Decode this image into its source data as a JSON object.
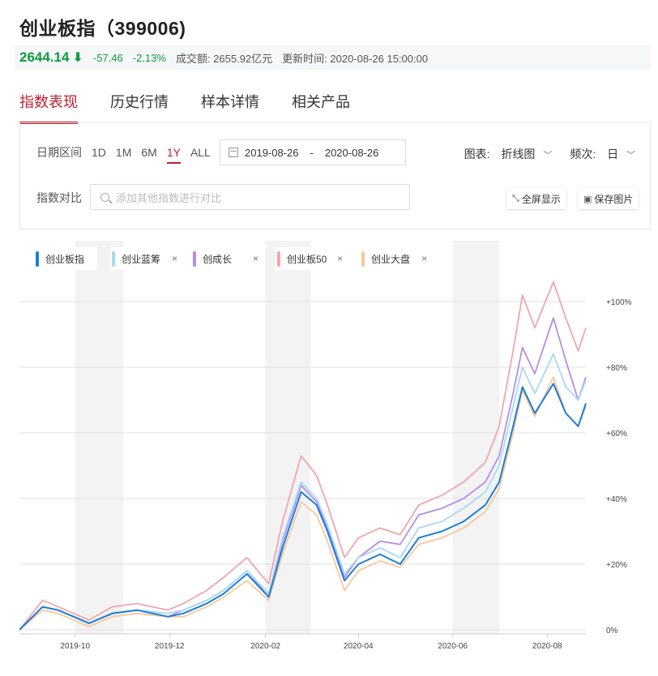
{
  "header": {
    "title": "创业板指（399006)",
    "price": "2644.14",
    "change": "-57.46",
    "change_pct": "-2.13%",
    "turnover": "成交额: 2655.92亿元",
    "update_time": "更新时间: 2020-08-26 15:00:00",
    "down_color": "#0e9b3a",
    "accent": "#c0202e"
  },
  "tabs": [
    {
      "label": "指数表现",
      "active": true
    },
    {
      "label": "历史行情",
      "active": false
    },
    {
      "label": "样本详情",
      "active": false
    },
    {
      "label": "相关产品",
      "active": false
    }
  ],
  "controls": {
    "date_range_label": "日期区间",
    "ranges": [
      "1D",
      "1M",
      "6M",
      "1Y",
      "ALL"
    ],
    "active_range": "1Y",
    "date_from": "2019-08-26",
    "date_sep": "-",
    "date_to": "2020-08-26",
    "chart_type_label": "图表:",
    "chart_type_value": "折线图",
    "freq_label": "频次:",
    "freq_value": "日",
    "compare_label": "指数对比",
    "compare_placeholder": "添加其他指数进行对比",
    "fullscreen_label": "全屏显示",
    "save_label": "保存图片"
  },
  "chart_data": {
    "type": "line",
    "x_ticks": [
      "2019-10",
      "2019-12",
      "2020-02",
      "2020-04",
      "2020-06",
      "2020-08"
    ],
    "y_ticks": [
      "0%",
      "+20%",
      "+40%",
      "+60%",
      "+80%",
      "+100%"
    ],
    "ylim": [
      0,
      100
    ],
    "legend_position": "top-left",
    "shaded_months": [
      "2019-10",
      "2020-02",
      "2020-06"
    ],
    "series": [
      {
        "name": "创业板指",
        "color": "#1a7fd8",
        "removable": false,
        "points": [
          [
            "2019-08-26",
            0
          ],
          [
            "2019-09-10",
            7
          ],
          [
            "2019-09-20",
            6
          ],
          [
            "2019-09-30",
            4
          ],
          [
            "2019-10-10",
            2
          ],
          [
            "2019-10-25",
            5
          ],
          [
            "2019-11-10",
            6
          ],
          [
            "2019-11-30",
            4
          ],
          [
            "2019-12-10",
            5
          ],
          [
            "2019-12-25",
            8
          ],
          [
            "2020-01-05",
            11
          ],
          [
            "2020-01-20",
            17
          ],
          [
            "2020-02-03",
            10
          ],
          [
            "2020-02-12",
            25
          ],
          [
            "2020-02-24",
            42
          ],
          [
            "2020-03-05",
            38
          ],
          [
            "2020-03-12",
            30
          ],
          [
            "2020-03-23",
            15
          ],
          [
            "2020-04-01",
            20
          ],
          [
            "2020-04-15",
            23
          ],
          [
            "2020-04-28",
            20
          ],
          [
            "2020-05-10",
            28
          ],
          [
            "2020-05-25",
            30
          ],
          [
            "2020-06-08",
            33
          ],
          [
            "2020-06-22",
            38
          ],
          [
            "2020-07-01",
            45
          ],
          [
            "2020-07-10",
            62
          ],
          [
            "2020-07-16",
            74
          ],
          [
            "2020-07-24",
            66
          ],
          [
            "2020-08-05",
            75
          ],
          [
            "2020-08-13",
            66
          ],
          [
            "2020-08-21",
            62
          ],
          [
            "2020-08-26",
            69
          ]
        ]
      },
      {
        "name": "创业蓝筹",
        "color": "#a8d8f8",
        "removable": true,
        "points": [
          [
            "2019-08-26",
            0
          ],
          [
            "2019-09-10",
            7
          ],
          [
            "2019-09-20",
            6
          ],
          [
            "2019-09-30",
            4
          ],
          [
            "2019-10-10",
            2
          ],
          [
            "2019-10-25",
            5
          ],
          [
            "2019-11-10",
            6
          ],
          [
            "2019-11-30",
            5
          ],
          [
            "2019-12-10",
            6
          ],
          [
            "2019-12-25",
            9
          ],
          [
            "2020-01-05",
            12
          ],
          [
            "2020-01-20",
            18
          ],
          [
            "2020-02-03",
            11
          ],
          [
            "2020-02-12",
            28
          ],
          [
            "2020-02-24",
            45
          ],
          [
            "2020-03-05",
            40
          ],
          [
            "2020-03-12",
            32
          ],
          [
            "2020-03-23",
            17
          ],
          [
            "2020-04-01",
            22
          ],
          [
            "2020-04-15",
            25
          ],
          [
            "2020-04-28",
            22
          ],
          [
            "2020-05-10",
            31
          ],
          [
            "2020-05-25",
            33
          ],
          [
            "2020-06-08",
            37
          ],
          [
            "2020-06-22",
            42
          ],
          [
            "2020-07-01",
            50
          ],
          [
            "2020-07-10",
            68
          ],
          [
            "2020-07-16",
            80
          ],
          [
            "2020-07-24",
            72
          ],
          [
            "2020-08-05",
            84
          ],
          [
            "2020-08-13",
            74
          ],
          [
            "2020-08-21",
            70
          ],
          [
            "2020-08-26",
            76
          ]
        ]
      },
      {
        "name": "创成长",
        "color": "#b48ee8",
        "removable": true,
        "points": [
          [
            "2019-08-26",
            0
          ],
          [
            "2019-09-10",
            7
          ],
          [
            "2019-09-20",
            6
          ],
          [
            "2019-09-30",
            4
          ],
          [
            "2019-10-10",
            2
          ],
          [
            "2019-10-25",
            5
          ],
          [
            "2019-11-10",
            6
          ],
          [
            "2019-11-30",
            4
          ],
          [
            "2019-12-10",
            6
          ],
          [
            "2019-12-25",
            9
          ],
          [
            "2020-01-05",
            12
          ],
          [
            "2020-01-20",
            18
          ],
          [
            "2020-02-03",
            10
          ],
          [
            "2020-02-12",
            27
          ],
          [
            "2020-02-24",
            44
          ],
          [
            "2020-03-05",
            39
          ],
          [
            "2020-03-12",
            31
          ],
          [
            "2020-03-23",
            16
          ],
          [
            "2020-04-01",
            22
          ],
          [
            "2020-04-15",
            27
          ],
          [
            "2020-04-28",
            26
          ],
          [
            "2020-05-10",
            35
          ],
          [
            "2020-05-25",
            37
          ],
          [
            "2020-06-08",
            40
          ],
          [
            "2020-06-22",
            45
          ],
          [
            "2020-07-01",
            53
          ],
          [
            "2020-07-10",
            72
          ],
          [
            "2020-07-16",
            86
          ],
          [
            "2020-07-24",
            78
          ],
          [
            "2020-08-05",
            95
          ],
          [
            "2020-08-13",
            82
          ],
          [
            "2020-08-21",
            70
          ],
          [
            "2020-08-26",
            77
          ]
        ]
      },
      {
        "name": "创业板50",
        "color": "#f2a5ac",
        "removable": true,
        "points": [
          [
            "2019-08-26",
            0
          ],
          [
            "2019-09-10",
            9
          ],
          [
            "2019-09-20",
            7
          ],
          [
            "2019-09-30",
            5
          ],
          [
            "2019-10-10",
            3
          ],
          [
            "2019-10-25",
            7
          ],
          [
            "2019-11-10",
            8
          ],
          [
            "2019-11-30",
            6
          ],
          [
            "2019-12-10",
            8
          ],
          [
            "2019-12-25",
            12
          ],
          [
            "2020-01-05",
            16
          ],
          [
            "2020-01-20",
            22
          ],
          [
            "2020-02-03",
            14
          ],
          [
            "2020-02-12",
            33
          ],
          [
            "2020-02-24",
            53
          ],
          [
            "2020-03-05",
            47
          ],
          [
            "2020-03-12",
            38
          ],
          [
            "2020-03-23",
            22
          ],
          [
            "2020-04-01",
            28
          ],
          [
            "2020-04-15",
            31
          ],
          [
            "2020-04-28",
            29
          ],
          [
            "2020-05-10",
            38
          ],
          [
            "2020-05-25",
            41
          ],
          [
            "2020-06-08",
            45
          ],
          [
            "2020-06-22",
            51
          ],
          [
            "2020-07-01",
            62
          ],
          [
            "2020-07-10",
            85
          ],
          [
            "2020-07-16",
            102
          ],
          [
            "2020-07-24",
            92
          ],
          [
            "2020-08-05",
            106
          ],
          [
            "2020-08-13",
            95
          ],
          [
            "2020-08-21",
            85
          ],
          [
            "2020-08-26",
            92
          ]
        ]
      },
      {
        "name": "创业大盘",
        "color": "#f8c898",
        "removable": true,
        "points": [
          [
            "2019-08-26",
            0
          ],
          [
            "2019-09-10",
            6
          ],
          [
            "2019-09-20",
            5
          ],
          [
            "2019-09-30",
            3
          ],
          [
            "2019-10-10",
            1
          ],
          [
            "2019-10-25",
            4
          ],
          [
            "2019-11-10",
            5
          ],
          [
            "2019-11-30",
            4
          ],
          [
            "2019-12-10",
            4
          ],
          [
            "2019-12-25",
            7
          ],
          [
            "2020-01-05",
            10
          ],
          [
            "2020-01-20",
            15
          ],
          [
            "2020-02-03",
            9
          ],
          [
            "2020-02-12",
            23
          ],
          [
            "2020-02-24",
            39
          ],
          [
            "2020-03-05",
            35
          ],
          [
            "2020-03-12",
            27
          ],
          [
            "2020-03-23",
            12
          ],
          [
            "2020-04-01",
            18
          ],
          [
            "2020-04-15",
            21
          ],
          [
            "2020-04-28",
            19
          ],
          [
            "2020-05-10",
            26
          ],
          [
            "2020-05-25",
            28
          ],
          [
            "2020-06-08",
            31
          ],
          [
            "2020-06-22",
            36
          ],
          [
            "2020-07-01",
            43
          ],
          [
            "2020-07-10",
            60
          ],
          [
            "2020-07-16",
            73
          ],
          [
            "2020-07-24",
            65
          ],
          [
            "2020-08-05",
            77
          ],
          [
            "2020-08-13",
            66
          ],
          [
            "2020-08-21",
            62
          ],
          [
            "2020-08-26",
            68
          ]
        ]
      }
    ]
  }
}
